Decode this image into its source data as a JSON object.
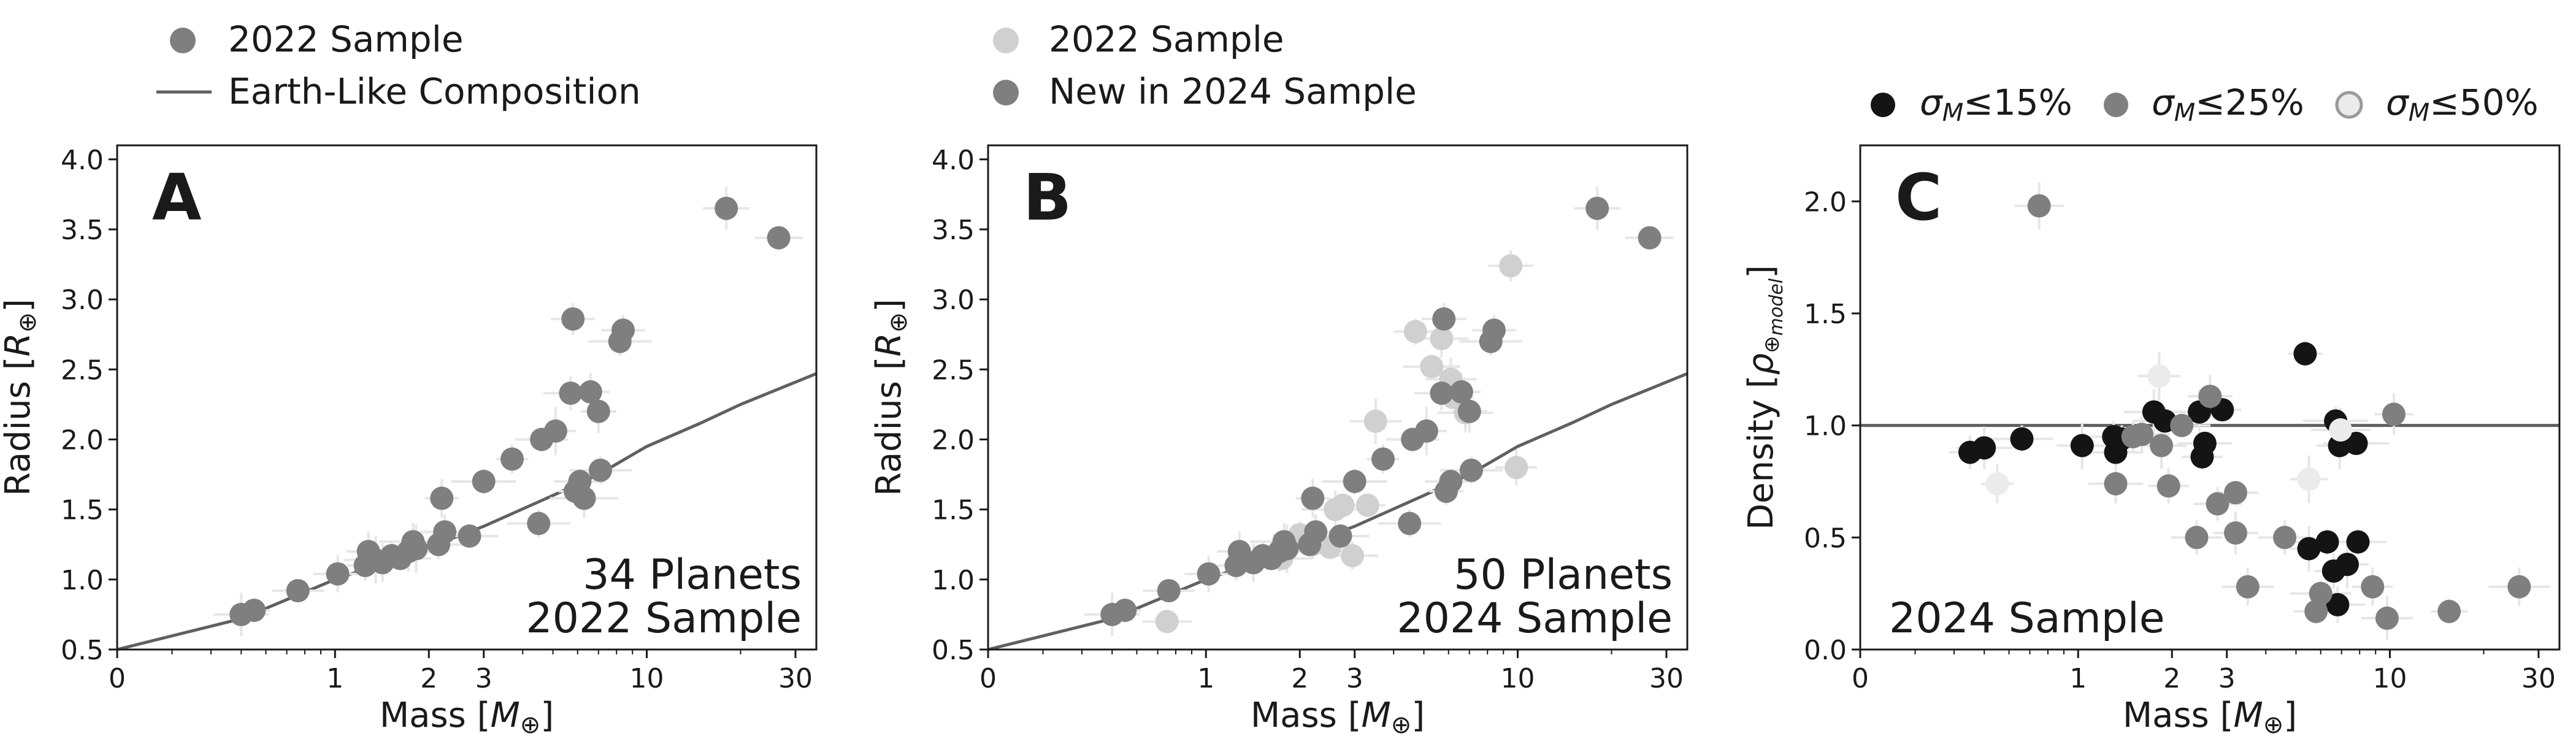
{
  "colors": {
    "sample_2022_dark": "#7f7f7f",
    "sample_2022_light": "#d0d0d0",
    "new_2024": "#7f7f7f",
    "earth_line": "#606060",
    "sigma15": "#141414",
    "sigma25": "#7f7f7f",
    "sigma50": "#ebebeb",
    "errorbar": "#e6e6e6",
    "axis": "#1a1a1a"
  },
  "legend_a": {
    "sample_label": "2022 Sample",
    "earth_label": "Earth-Like Composition"
  },
  "legend_b": {
    "sample_label": "2022 Sample",
    "new_label": "New in 2024 Sample"
  },
  "legend_c": {
    "s15_label": "σ_M≤15%",
    "s25_label": "σ_M≤25%",
    "s50_label": "σ_M≤50%"
  },
  "chart_data": [
    {
      "panel": "A",
      "type": "scatter",
      "x_scale": "log",
      "xlabel": "Mass [M⊕]",
      "ylabel": "Radius [R⊕]",
      "xlim": [
        0.2,
        35
      ],
      "ylim": [
        0.5,
        4.1
      ],
      "x_ticks": [
        {
          "value": 1,
          "label": "1"
        },
        {
          "value": 2,
          "label": "2"
        },
        {
          "value": 3,
          "label": "3"
        },
        {
          "value": 10,
          "label": "10"
        },
        {
          "value": 30,
          "label": "30"
        }
      ],
      "x_zero_label": "0",
      "y_ticks": [
        "0.5",
        "1.0",
        "1.5",
        "2.0",
        "2.5",
        "3.0",
        "3.5",
        "4.0"
      ],
      "annotation": [
        "34 Planets",
        "2022 Sample"
      ],
      "earth_like_curve": {
        "x": [
          0.2,
          0.5,
          1,
          2,
          3,
          5,
          7,
          10,
          15,
          20,
          35
        ],
        "y": [
          0.5,
          0.72,
          1.0,
          1.23,
          1.38,
          1.6,
          1.75,
          1.95,
          2.12,
          2.25,
          2.47
        ]
      },
      "series": [
        {
          "name": "2022 Sample",
          "points": [
            {
              "x": 0.5,
              "y": 0.75
            },
            {
              "x": 0.55,
              "y": 0.78
            },
            {
              "x": 0.76,
              "y": 0.92
            },
            {
              "x": 1.02,
              "y": 1.04
            },
            {
              "x": 1.25,
              "y": 1.1
            },
            {
              "x": 1.28,
              "y": 1.2
            },
            {
              "x": 1.42,
              "y": 1.12
            },
            {
              "x": 1.52,
              "y": 1.17
            },
            {
              "x": 1.62,
              "y": 1.15
            },
            {
              "x": 1.72,
              "y": 1.2
            },
            {
              "x": 1.78,
              "y": 1.27
            },
            {
              "x": 2.15,
              "y": 1.25
            },
            {
              "x": 2.2,
              "y": 1.58
            },
            {
              "x": 2.25,
              "y": 1.34
            },
            {
              "x": 2.7,
              "y": 1.31
            },
            {
              "x": 3.0,
              "y": 1.7
            },
            {
              "x": 3.7,
              "y": 1.86
            },
            {
              "x": 4.6,
              "y": 2.0
            },
            {
              "x": 5.1,
              "y": 2.06
            },
            {
              "x": 4.5,
              "y": 1.4
            },
            {
              "x": 5.9,
              "y": 1.63
            },
            {
              "x": 6.1,
              "y": 1.7
            },
            {
              "x": 7.1,
              "y": 1.78
            },
            {
              "x": 5.7,
              "y": 2.33
            },
            {
              "x": 6.6,
              "y": 2.34
            },
            {
              "x": 7.0,
              "y": 2.2
            },
            {
              "x": 5.8,
              "y": 2.86
            },
            {
              "x": 8.2,
              "y": 2.7
            },
            {
              "x": 8.4,
              "y": 2.78
            },
            {
              "x": 18,
              "y": 3.65
            },
            {
              "x": 26.5,
              "y": 3.44
            },
            {
              "x": 1.82,
              "y": 1.22
            },
            {
              "x": 1.35,
              "y": 1.14
            },
            {
              "x": 6.3,
              "y": 1.58
            }
          ]
        }
      ]
    },
    {
      "panel": "B",
      "type": "scatter",
      "x_scale": "log",
      "xlabel": "Mass [M⊕]",
      "ylabel": "Radius [R⊕]",
      "xlim": [
        0.2,
        35
      ],
      "ylim": [
        0.5,
        4.1
      ],
      "x_ticks": [
        {
          "value": 1,
          "label": "1"
        },
        {
          "value": 2,
          "label": "2"
        },
        {
          "value": 3,
          "label": "3"
        },
        {
          "value": 10,
          "label": "10"
        },
        {
          "value": 30,
          "label": "30"
        }
      ],
      "x_zero_label": "0",
      "y_ticks": [
        "0.5",
        "1.0",
        "1.5",
        "2.0",
        "2.5",
        "3.0",
        "3.5",
        "4.0"
      ],
      "annotation": [
        "50 Planets",
        "2024 Sample"
      ],
      "earth_like_curve": {
        "x": [
          0.2,
          0.5,
          1,
          2,
          3,
          5,
          7,
          10,
          15,
          20,
          35
        ],
        "y": [
          0.5,
          0.72,
          1.0,
          1.23,
          1.38,
          1.6,
          1.75,
          1.95,
          2.12,
          2.25,
          2.47
        ]
      },
      "series": [
        {
          "name": "2022 Sample",
          "points": [
            {
              "x": 0.75,
              "y": 0.7
            },
            {
              "x": 1.75,
              "y": 1.15
            },
            {
              "x": 2.0,
              "y": 1.32
            },
            {
              "x": 2.2,
              "y": 1.25
            },
            {
              "x": 2.5,
              "y": 1.23
            },
            {
              "x": 2.6,
              "y": 1.5
            },
            {
              "x": 2.75,
              "y": 1.53
            },
            {
              "x": 2.95,
              "y": 1.17
            },
            {
              "x": 3.3,
              "y": 1.53
            },
            {
              "x": 3.5,
              "y": 2.13
            },
            {
              "x": 4.7,
              "y": 2.77
            },
            {
              "x": 5.3,
              "y": 2.52
            },
            {
              "x": 5.7,
              "y": 2.72
            },
            {
              "x": 6.1,
              "y": 2.43
            },
            {
              "x": 6.2,
              "y": 2.3
            },
            {
              "x": 6.8,
              "y": 2.19
            },
            {
              "x": 9.5,
              "y": 3.24
            },
            {
              "x": 9.9,
              "y": 1.8
            }
          ]
        },
        {
          "name": "New in 2024 Sample",
          "points": [
            {
              "x": 0.5,
              "y": 0.75
            },
            {
              "x": 0.55,
              "y": 0.78
            },
            {
              "x": 0.76,
              "y": 0.92
            },
            {
              "x": 1.02,
              "y": 1.04
            },
            {
              "x": 1.25,
              "y": 1.1
            },
            {
              "x": 1.28,
              "y": 1.2
            },
            {
              "x": 1.42,
              "y": 1.12
            },
            {
              "x": 1.52,
              "y": 1.17
            },
            {
              "x": 1.62,
              "y": 1.15
            },
            {
              "x": 1.72,
              "y": 1.2
            },
            {
              "x": 1.78,
              "y": 1.27
            },
            {
              "x": 2.15,
              "y": 1.25
            },
            {
              "x": 2.2,
              "y": 1.58
            },
            {
              "x": 2.25,
              "y": 1.34
            },
            {
              "x": 2.7,
              "y": 1.31
            },
            {
              "x": 3.0,
              "y": 1.7
            },
            {
              "x": 3.7,
              "y": 1.86
            },
            {
              "x": 4.6,
              "y": 2.0
            },
            {
              "x": 5.1,
              "y": 2.06
            },
            {
              "x": 4.5,
              "y": 1.4
            },
            {
              "x": 5.9,
              "y": 1.63
            },
            {
              "x": 6.1,
              "y": 1.7
            },
            {
              "x": 7.1,
              "y": 1.78
            },
            {
              "x": 5.7,
              "y": 2.33
            },
            {
              "x": 6.6,
              "y": 2.34
            },
            {
              "x": 7.0,
              "y": 2.2
            },
            {
              "x": 5.8,
              "y": 2.86
            },
            {
              "x": 8.2,
              "y": 2.7
            },
            {
              "x": 8.4,
              "y": 2.78
            },
            {
              "x": 18,
              "y": 3.65
            },
            {
              "x": 26.5,
              "y": 3.44
            },
            {
              "x": 1.82,
              "y": 1.22
            }
          ]
        }
      ]
    },
    {
      "panel": "C",
      "type": "scatter",
      "x_scale": "log",
      "xlabel": "Mass [M⊕]",
      "ylabel": "Density [ρ⊕model]",
      "xlim": [
        0.2,
        35
      ],
      "ylim": [
        0.0,
        2.25
      ],
      "x_ticks": [
        {
          "value": 1,
          "label": "1"
        },
        {
          "value": 2,
          "label": "2"
        },
        {
          "value": 3,
          "label": "3"
        },
        {
          "value": 10,
          "label": "10"
        },
        {
          "value": 30,
          "label": "30"
        }
      ],
      "x_zero_label": "0",
      "y_ticks": [
        "0.0",
        "0.5",
        "1.0",
        "1.5",
        "2.0"
      ],
      "reference_line": 1.0,
      "annotation": [
        "2024 Sample"
      ],
      "series": [
        {
          "name": "σ_M≤15%",
          "points": [
            {
              "x": 0.45,
              "y": 0.88
            },
            {
              "x": 0.5,
              "y": 0.9
            },
            {
              "x": 0.66,
              "y": 0.94
            },
            {
              "x": 1.03,
              "y": 0.91
            },
            {
              "x": 1.3,
              "y": 0.95
            },
            {
              "x": 1.32,
              "y": 0.88
            },
            {
              "x": 1.38,
              "y": 0.94
            },
            {
              "x": 1.75,
              "y": 1.06
            },
            {
              "x": 1.9,
              "y": 1.02
            },
            {
              "x": 2.45,
              "y": 1.06
            },
            {
              "x": 2.5,
              "y": 0.86
            },
            {
              "x": 2.55,
              "y": 0.92
            },
            {
              "x": 2.9,
              "y": 1.07
            },
            {
              "x": 5.35,
              "y": 1.32
            },
            {
              "x": 6.7,
              "y": 1.02
            },
            {
              "x": 6.9,
              "y": 0.91
            },
            {
              "x": 7.8,
              "y": 0.92
            },
            {
              "x": 5.5,
              "y": 0.45
            },
            {
              "x": 6.3,
              "y": 0.48
            },
            {
              "x": 6.6,
              "y": 0.35
            },
            {
              "x": 7.3,
              "y": 0.38
            },
            {
              "x": 7.9,
              "y": 0.48
            },
            {
              "x": 6.8,
              "y": 0.2
            }
          ]
        },
        {
          "name": "σ_M≤25%",
          "points": [
            {
              "x": 0.75,
              "y": 1.98
            },
            {
              "x": 1.32,
              "y": 0.74
            },
            {
              "x": 1.6,
              "y": 0.96
            },
            {
              "x": 1.85,
              "y": 0.91
            },
            {
              "x": 1.95,
              "y": 0.73
            },
            {
              "x": 2.15,
              "y": 1.0
            },
            {
              "x": 2.4,
              "y": 0.5
            },
            {
              "x": 2.65,
              "y": 1.13
            },
            {
              "x": 2.8,
              "y": 0.65
            },
            {
              "x": 3.2,
              "y": 0.52
            },
            {
              "x": 3.2,
              "y": 0.7
            },
            {
              "x": 3.5,
              "y": 0.28
            },
            {
              "x": 4.6,
              "y": 0.5
            },
            {
              "x": 5.8,
              "y": 0.17
            },
            {
              "x": 6.0,
              "y": 0.25
            },
            {
              "x": 8.8,
              "y": 0.28
            },
            {
              "x": 9.8,
              "y": 0.14
            },
            {
              "x": 10.3,
              "y": 1.05
            },
            {
              "x": 15.5,
              "y": 0.17
            },
            {
              "x": 26,
              "y": 0.28
            },
            {
              "x": 1.5,
              "y": 0.95
            }
          ]
        },
        {
          "name": "σ_M≤50%",
          "points": [
            {
              "x": 0.55,
              "y": 0.74
            },
            {
              "x": 1.82,
              "y": 1.22
            },
            {
              "x": 5.5,
              "y": 0.76
            },
            {
              "x": 6.95,
              "y": 0.98
            }
          ]
        }
      ]
    }
  ]
}
